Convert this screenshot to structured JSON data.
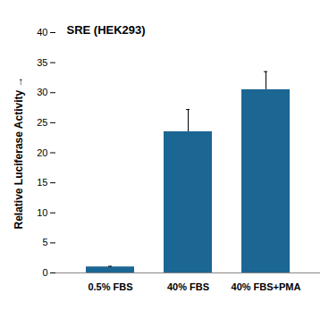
{
  "chart_data": {
    "type": "bar",
    "title": "SRE (HEK293)",
    "y_label": "Relative Luciferase Activity",
    "categories": [
      "0.5% FBS",
      "40% FBS",
      "40% FBS+PMA"
    ],
    "values": [
      1.0,
      23.5,
      30.5
    ],
    "errors": [
      0.1,
      3.7,
      3.0
    ],
    "color": "#1c6694",
    "ylim": [
      0,
      40
    ],
    "yticks": [
      0,
      5,
      10,
      15,
      20,
      25,
      30,
      35,
      40
    ],
    "grid": false
  }
}
